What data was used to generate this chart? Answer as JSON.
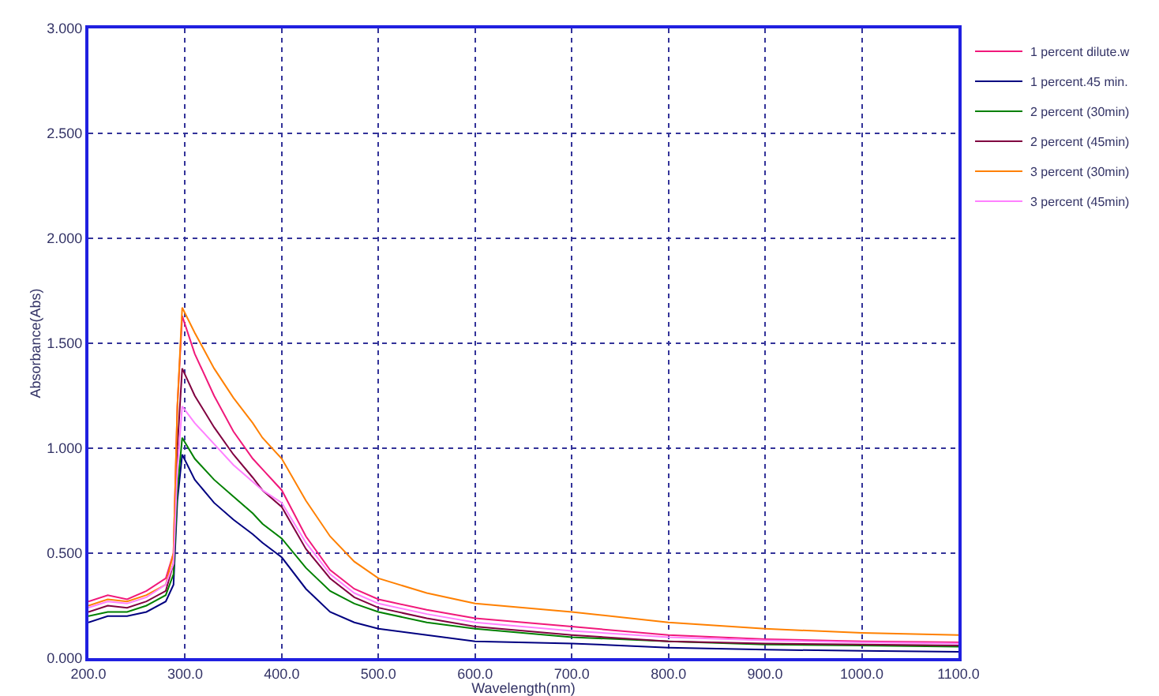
{
  "chart_data": {
    "type": "line",
    "xlabel": "Wavelength(nm)",
    "ylabel": "Absorbance(Abs)",
    "x": [
      200,
      220,
      240,
      260,
      280,
      288,
      292,
      297,
      310,
      330,
      350,
      370,
      380,
      400,
      425,
      450,
      475,
      500,
      550,
      600,
      700,
      800,
      900,
      1000,
      1100
    ],
    "series": [
      {
        "name": "1 percent dilute.w",
        "color": "#f0187a",
        "values": [
          0.27,
          0.3,
          0.28,
          0.32,
          0.38,
          0.5,
          1.2,
          1.63,
          1.45,
          1.25,
          1.08,
          0.95,
          0.9,
          0.8,
          0.58,
          0.42,
          0.33,
          0.28,
          0.23,
          0.19,
          0.15,
          0.11,
          0.09,
          0.08,
          0.075
        ]
      },
      {
        "name": "1 percent.45 min.",
        "color": "#000080",
        "values": [
          0.17,
          0.2,
          0.2,
          0.22,
          0.27,
          0.35,
          0.75,
          0.97,
          0.85,
          0.74,
          0.66,
          0.59,
          0.55,
          0.48,
          0.33,
          0.22,
          0.17,
          0.14,
          0.11,
          0.08,
          0.07,
          0.05,
          0.04,
          0.035,
          0.03
        ]
      },
      {
        "name": "2 percent (30min)",
        "color": "#008000",
        "values": [
          0.2,
          0.22,
          0.22,
          0.25,
          0.3,
          0.4,
          0.8,
          1.05,
          0.95,
          0.85,
          0.77,
          0.69,
          0.64,
          0.57,
          0.43,
          0.32,
          0.26,
          0.22,
          0.17,
          0.14,
          0.1,
          0.08,
          0.065,
          0.06,
          0.055
        ]
      },
      {
        "name": "2 percent (45min)",
        "color": "#800040",
        "values": [
          0.22,
          0.25,
          0.24,
          0.27,
          0.32,
          0.45,
          1.0,
          1.38,
          1.25,
          1.1,
          0.97,
          0.86,
          0.8,
          0.72,
          0.52,
          0.38,
          0.29,
          0.24,
          0.19,
          0.15,
          0.11,
          0.08,
          0.07,
          0.065,
          0.06
        ]
      },
      {
        "name": "3 percent (30min)",
        "color": "#ff8000",
        "values": [
          0.25,
          0.28,
          0.27,
          0.3,
          0.35,
          0.5,
          1.2,
          1.67,
          1.55,
          1.38,
          1.24,
          1.12,
          1.05,
          0.95,
          0.75,
          0.58,
          0.46,
          0.38,
          0.31,
          0.26,
          0.22,
          0.17,
          0.14,
          0.12,
          0.11
        ]
      },
      {
        "name": "3 percent (45min)",
        "color": "#ff80ff",
        "values": [
          0.24,
          0.27,
          0.26,
          0.29,
          0.35,
          0.45,
          0.9,
          1.2,
          1.12,
          1.02,
          0.92,
          0.84,
          0.8,
          0.74,
          0.55,
          0.4,
          0.31,
          0.26,
          0.21,
          0.17,
          0.13,
          0.1,
          0.085,
          0.075,
          0.07
        ]
      }
    ],
    "xlim": [
      200,
      1100
    ],
    "xticks": [
      {
        "value": 200,
        "label": "200.0"
      },
      {
        "value": 300,
        "label": "300.0"
      },
      {
        "value": 400,
        "label": "400.0"
      },
      {
        "value": 500,
        "label": "500.0"
      },
      {
        "value": 600,
        "label": "600.0"
      },
      {
        "value": 700,
        "label": "700.0"
      },
      {
        "value": 800,
        "label": "800.0"
      },
      {
        "value": 900,
        "label": "900.0"
      },
      {
        "value": 1000,
        "label": "1000.0"
      },
      {
        "value": 1100,
        "label": "1100.0"
      }
    ],
    "ylim": [
      0,
      3
    ],
    "yticks": [
      {
        "value": 0,
        "label": "0.000"
      },
      {
        "value": 0.5,
        "label": "0.500"
      },
      {
        "value": 1,
        "label": "1.000"
      },
      {
        "value": 1.5,
        "label": "1.500"
      },
      {
        "value": 2,
        "label": "2.000"
      },
      {
        "value": 2.5,
        "label": "2.500"
      },
      {
        "value": 3,
        "label": "3.000"
      }
    ],
    "grid": true,
    "legend": "top right",
    "marker": "none",
    "line_style": "solid"
  }
}
